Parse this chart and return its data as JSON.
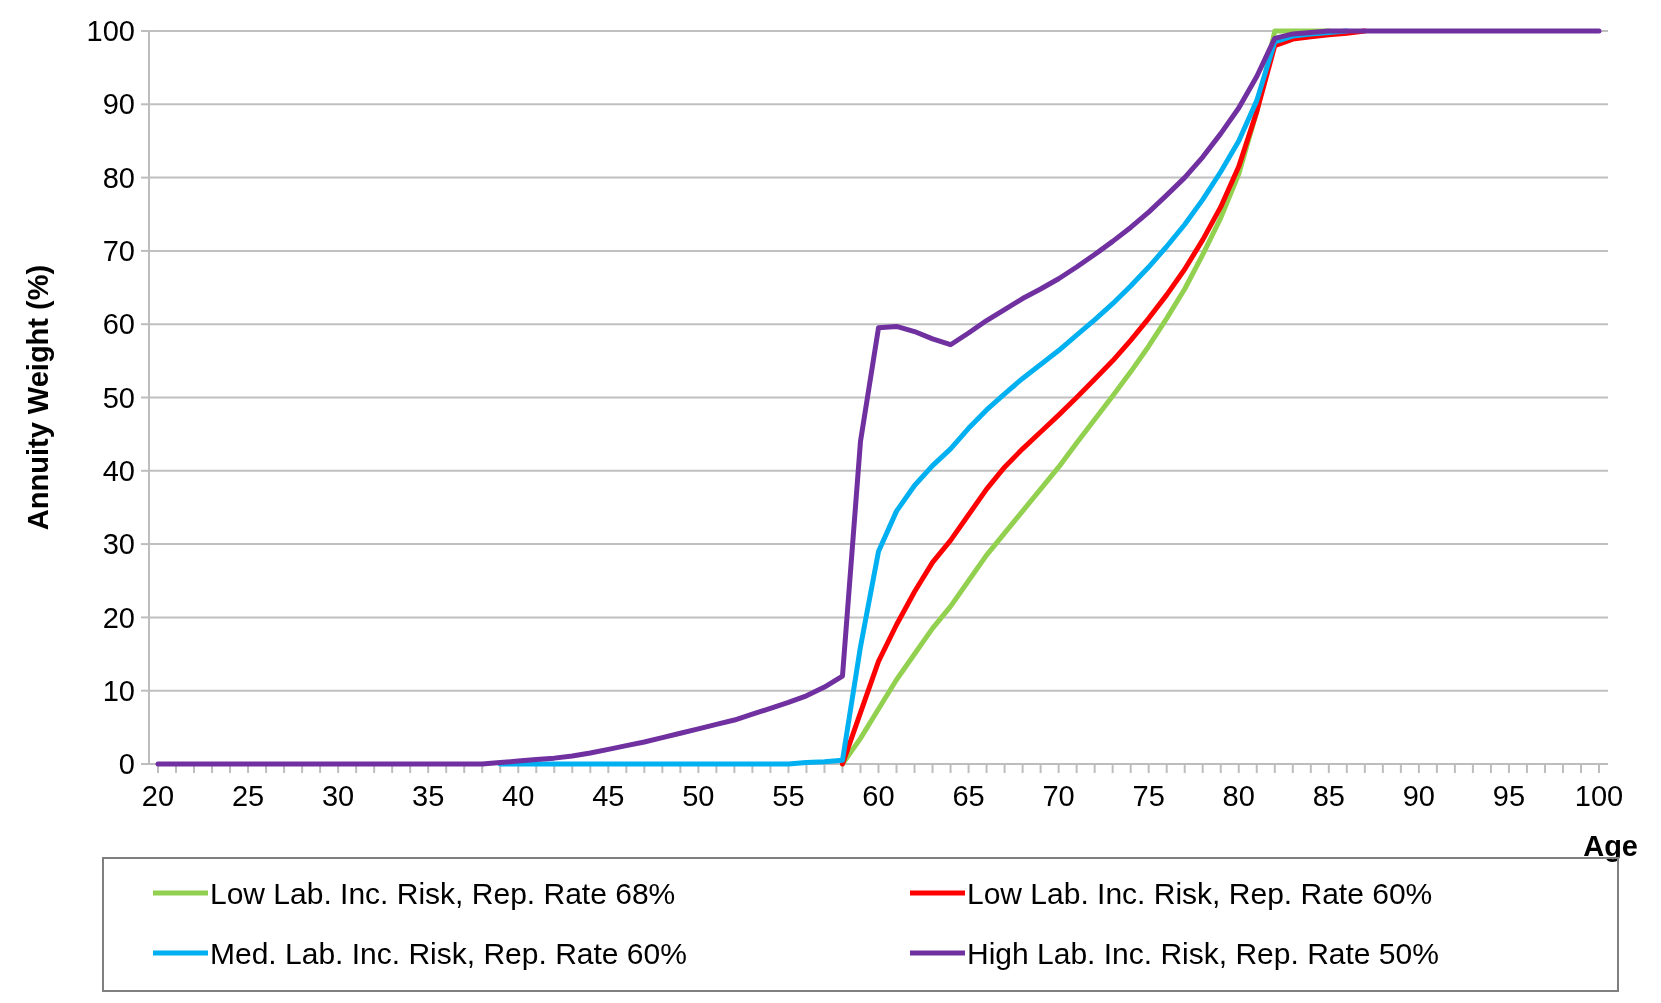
{
  "chart_data": {
    "type": "line",
    "xlabel": "Age",
    "ylabel": "Annuity Weight (%)",
    "x": [
      20,
      21,
      22,
      23,
      24,
      25,
      26,
      27,
      28,
      29,
      30,
      31,
      32,
      33,
      34,
      35,
      36,
      37,
      38,
      39,
      40,
      41,
      42,
      43,
      44,
      45,
      46,
      47,
      48,
      49,
      50,
      51,
      52,
      53,
      54,
      55,
      56,
      57,
      58,
      59,
      60,
      61,
      62,
      63,
      64,
      65,
      66,
      67,
      68,
      69,
      70,
      71,
      72,
      73,
      74,
      75,
      76,
      77,
      78,
      79,
      80,
      81,
      82,
      83,
      84,
      85,
      86,
      87,
      88,
      89,
      90,
      91,
      92,
      93,
      94,
      95,
      96,
      97,
      98,
      99,
      100
    ],
    "series": [
      {
        "name": "Low Lab. Inc. Risk, Rep. Rate 68%",
        "color": "#92d050",
        "values": [
          null,
          null,
          null,
          null,
          null,
          null,
          null,
          null,
          null,
          null,
          null,
          null,
          null,
          null,
          null,
          null,
          null,
          null,
          null,
          null,
          null,
          null,
          null,
          null,
          null,
          null,
          null,
          null,
          null,
          null,
          null,
          null,
          null,
          null,
          null,
          null,
          null,
          null,
          0,
          3.5,
          7.5,
          11.5,
          15,
          18.5,
          21.5,
          25,
          28.5,
          31.5,
          34.5,
          37.5,
          40.5,
          43.8,
          47,
          50.2,
          53.5,
          57,
          60.8,
          64.8,
          69.5,
          74.5,
          80.5,
          89,
          100,
          100,
          100,
          100,
          null,
          null,
          null,
          null,
          null,
          null,
          null,
          null,
          null,
          null,
          null,
          null,
          null,
          null,
          null
        ]
      },
      {
        "name": "Low Lab. Inc. Risk, Rep. Rate 60%",
        "color": "#ff0000",
        "values": [
          null,
          null,
          null,
          null,
          null,
          null,
          null,
          null,
          null,
          null,
          null,
          null,
          null,
          null,
          null,
          null,
          null,
          null,
          null,
          null,
          null,
          null,
          null,
          null,
          null,
          null,
          null,
          null,
          null,
          null,
          null,
          null,
          null,
          null,
          null,
          null,
          null,
          null,
          0,
          7,
          14,
          19,
          23.5,
          27.5,
          30.5,
          34,
          37.5,
          40.5,
          43,
          45.3,
          47.6,
          50,
          52.5,
          55,
          57.8,
          60.8,
          64,
          67.5,
          71.5,
          76,
          81.5,
          89,
          98,
          98.9,
          99.2,
          99.5,
          99.7,
          100,
          null,
          null,
          null,
          null,
          null,
          null,
          null,
          null,
          null,
          null,
          null,
          null,
          null
        ]
      },
      {
        "name": "Med. Lab. Inc. Risk, Rep. Rate 60%",
        "color": "#00b0f0",
        "values": [
          null,
          null,
          null,
          null,
          null,
          null,
          null,
          null,
          null,
          null,
          null,
          null,
          null,
          null,
          null,
          null,
          null,
          null,
          null,
          0,
          0,
          0,
          0,
          0,
          0,
          0,
          0,
          0,
          0,
          0,
          0,
          0,
          0,
          0,
          0,
          0,
          0.2,
          0.3,
          0.5,
          16,
          29,
          34.5,
          38,
          40.7,
          43,
          45.8,
          48.3,
          50.5,
          52.6,
          54.5,
          56.4,
          58.5,
          60.6,
          62.8,
          65.2,
          67.8,
          70.6,
          73.6,
          77,
          80.8,
          85,
          90.5,
          98.5,
          99.3,
          99.6,
          99.8,
          100,
          null,
          null,
          null,
          null,
          null,
          null,
          null,
          null,
          null,
          null,
          null,
          null,
          null,
          null
        ]
      },
      {
        "name": "High Lab. Inc. Risk, Rep. Rate 50%",
        "color": "#7030a0",
        "values": [
          0,
          0,
          0,
          0,
          0,
          0,
          0,
          0,
          0,
          0,
          0,
          0,
          0,
          0,
          0,
          0,
          0,
          0,
          0,
          0.2,
          0.4,
          0.6,
          0.8,
          1.1,
          1.5,
          2,
          2.5,
          3,
          3.6,
          4.2,
          4.8,
          5.4,
          6,
          6.8,
          7.6,
          8.4,
          9.3,
          10.5,
          12,
          44,
          59.5,
          59.7,
          59,
          58,
          57.2,
          58.8,
          60.5,
          62,
          63.5,
          64.8,
          66.2,
          67.8,
          69.5,
          71.3,
          73.2,
          75.3,
          77.6,
          80,
          82.8,
          86,
          89.5,
          93.8,
          99,
          99.6,
          99.8,
          100,
          100,
          100,
          100,
          100,
          100,
          100,
          100,
          100,
          100,
          100,
          100,
          100,
          100,
          100,
          100
        ]
      }
    ],
    "xlim": [
      19.5,
      100.5
    ],
    "ylim": [
      0,
      100
    ],
    "xticks": [
      20,
      {
        "value": 21,
        "label": null
      },
      {
        "value": 22,
        "label": null
      },
      {
        "value": 23,
        "label": null
      },
      {
        "value": 24,
        "label": null
      },
      25,
      {
        "value": 26,
        "label": null
      },
      {
        "value": 27,
        "label": null
      },
      {
        "value": 28,
        "label": null
      },
      {
        "value": 29,
        "label": null
      },
      30,
      {
        "value": 31,
        "label": null
      },
      {
        "value": 32,
        "label": null
      },
      {
        "value": 33,
        "label": null
      },
      {
        "value": 34,
        "label": null
      },
      35,
      {
        "value": 36,
        "label": null
      },
      {
        "value": 37,
        "label": null
      },
      {
        "value": 38,
        "label": null
      },
      {
        "value": 39,
        "label": null
      },
      40,
      {
        "value": 41,
        "label": null
      },
      {
        "value": 42,
        "label": null
      },
      {
        "value": 43,
        "label": null
      },
      {
        "value": 44,
        "label": null
      },
      45,
      {
        "value": 46,
        "label": null
      },
      {
        "value": 47,
        "label": null
      },
      {
        "value": 48,
        "label": null
      },
      {
        "value": 49,
        "label": null
      },
      50,
      {
        "value": 51,
        "label": null
      },
      {
        "value": 52,
        "label": null
      },
      {
        "value": 53,
        "label": null
      },
      {
        "value": 54,
        "label": null
      },
      55,
      {
        "value": 56,
        "label": null
      },
      {
        "value": 57,
        "label": null
      },
      {
        "value": 58,
        "label": null
      },
      {
        "value": 59,
        "label": null
      },
      60,
      {
        "value": 61,
        "label": null
      },
      {
        "value": 62,
        "label": null
      },
      {
        "value": 63,
        "label": null
      },
      {
        "value": 64,
        "label": null
      },
      65,
      {
        "value": 66,
        "label": null
      },
      {
        "value": 67,
        "label": null
      },
      {
        "value": 68,
        "label": null
      },
      {
        "value": 69,
        "label": null
      },
      70,
      {
        "value": 71,
        "label": null
      },
      {
        "value": 72,
        "label": null
      },
      {
        "value": 73,
        "label": null
      },
      {
        "value": 74,
        "label": null
      },
      75,
      {
        "value": 76,
        "label": null
      },
      {
        "value": 77,
        "label": null
      },
      {
        "value": 78,
        "label": null
      },
      {
        "value": 79,
        "label": null
      },
      80,
      {
        "value": 81,
        "label": null
      },
      {
        "value": 82,
        "label": null
      },
      {
        "value": 83,
        "label": null
      },
      {
        "value": 84,
        "label": null
      },
      85,
      {
        "value": 86,
        "label": null
      },
      {
        "value": 87,
        "label": null
      },
      {
        "value": 88,
        "label": null
      },
      {
        "value": 89,
        "label": null
      },
      90,
      {
        "value": 91,
        "label": null
      },
      {
        "value": 92,
        "label": null
      },
      {
        "value": 93,
        "label": null
      },
      {
        "value": 94,
        "label": null
      },
      95,
      {
        "value": 96,
        "label": null
      },
      {
        "value": 97,
        "label": null
      },
      {
        "value": 98,
        "label": null
      },
      {
        "value": 99,
        "label": null
      },
      100
    ],
    "yticks": [
      0,
      10,
      20,
      30,
      40,
      50,
      60,
      70,
      80,
      90,
      100
    ],
    "grid": "y",
    "legend": "bottom",
    "marker": "none",
    "line_style": "solid"
  }
}
